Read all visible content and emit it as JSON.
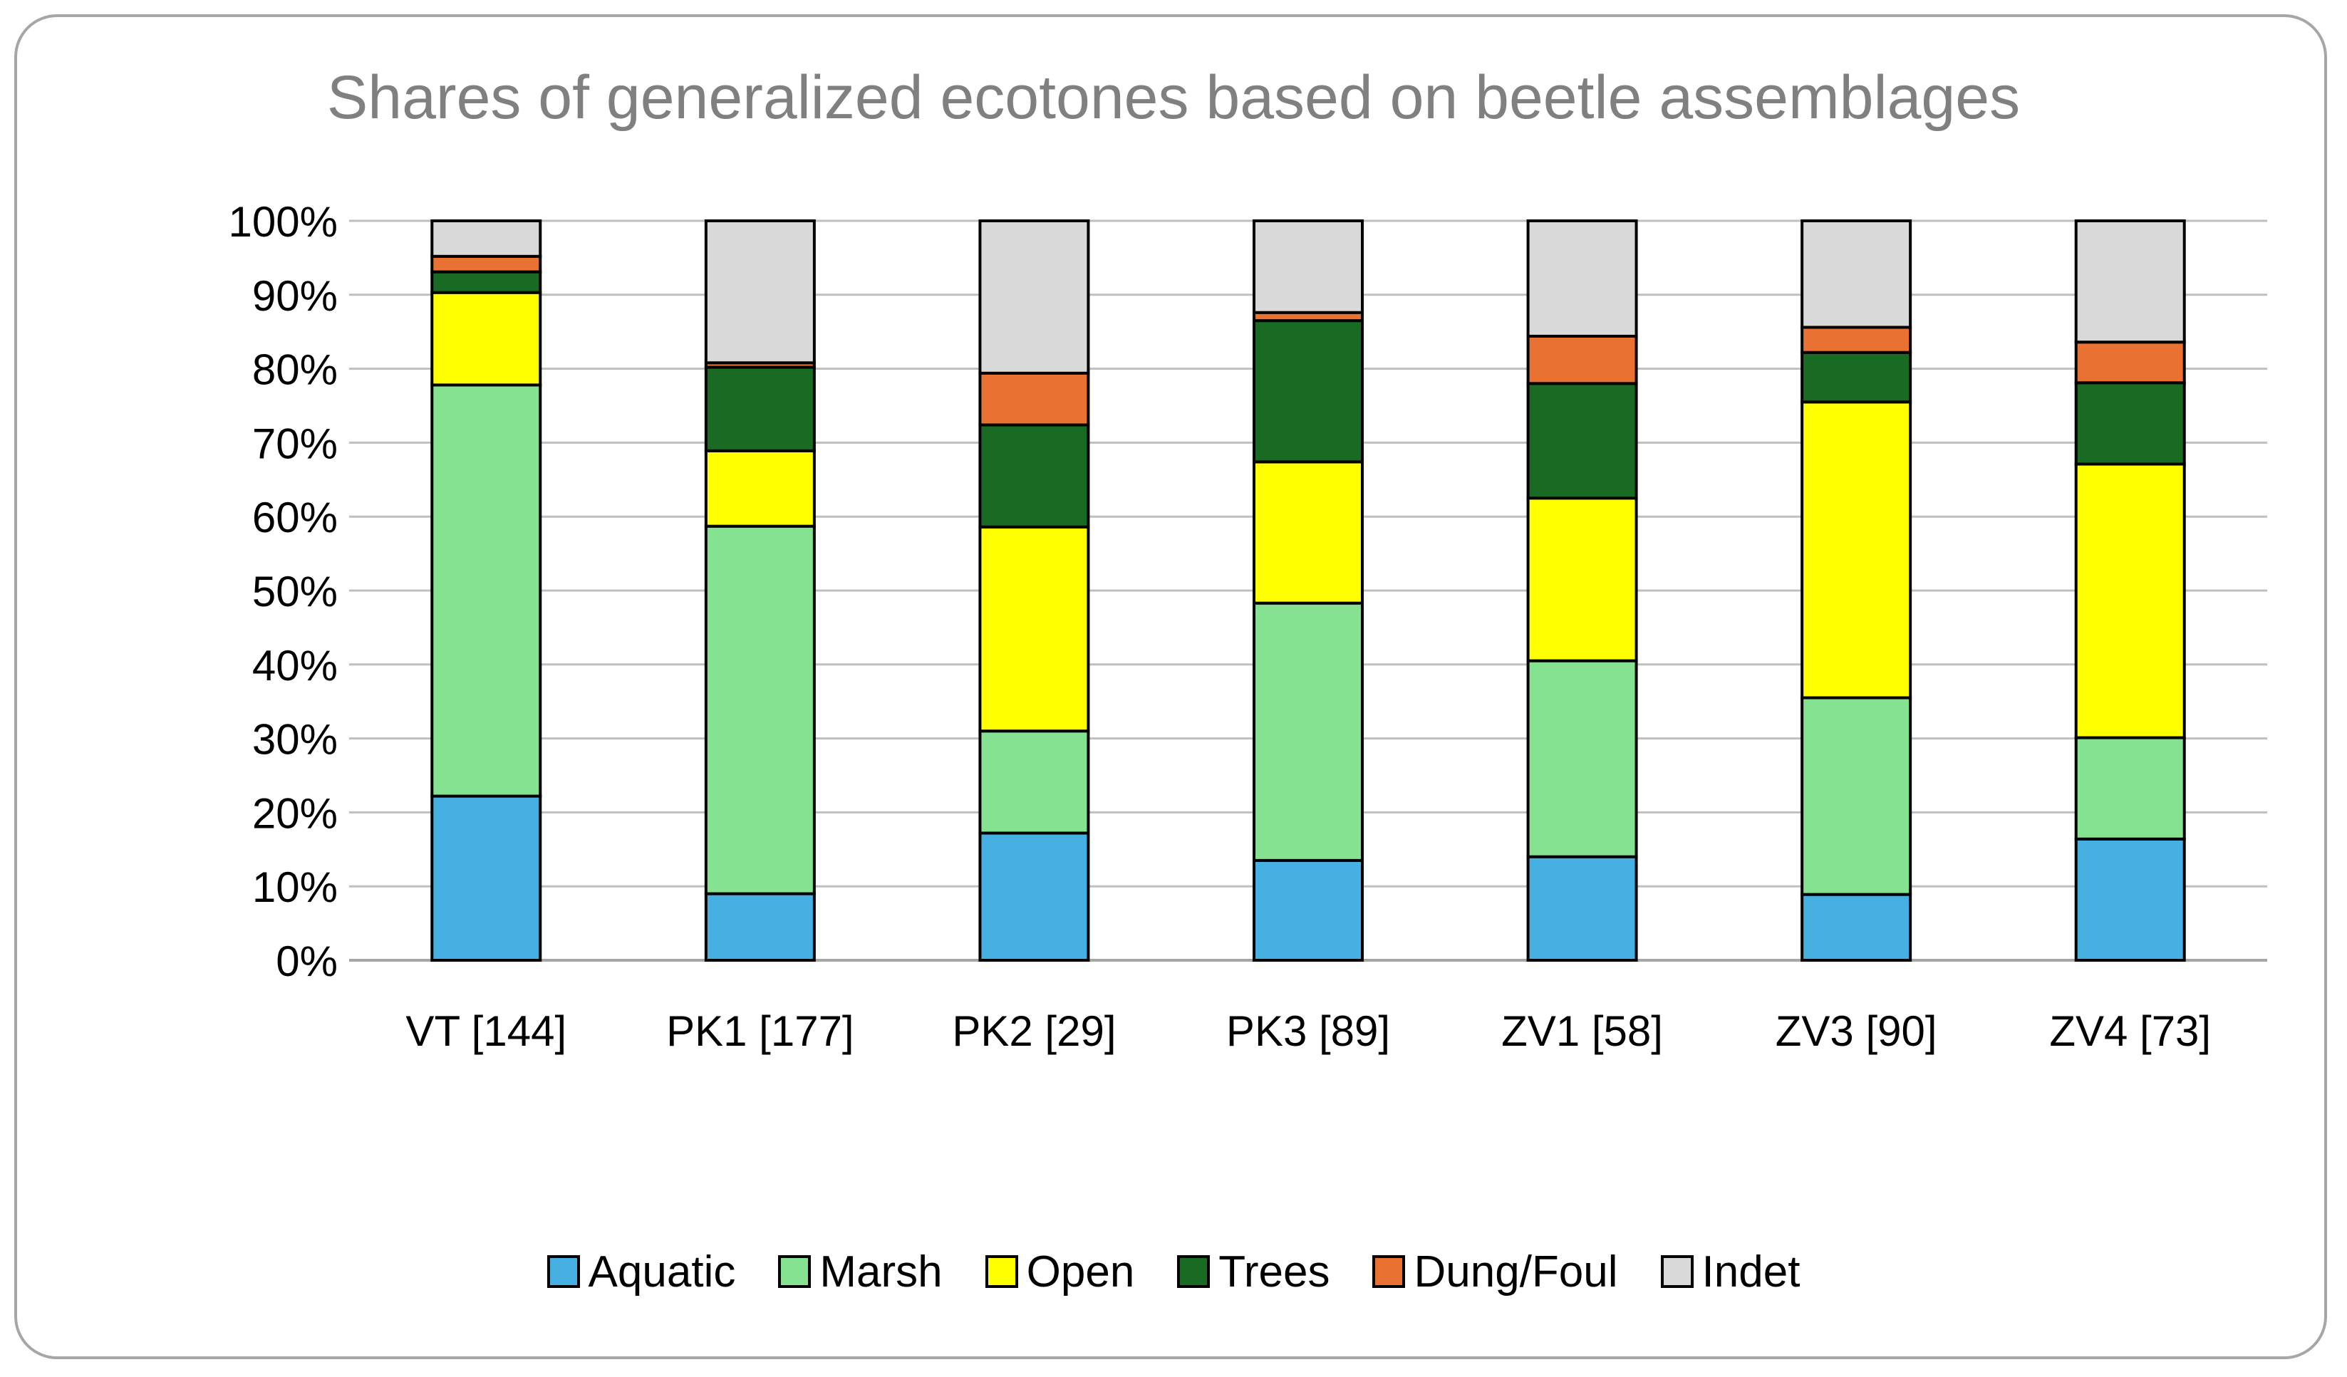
{
  "chart_data": {
    "type": "bar",
    "stacked": true,
    "title": "Shares of generalized ecotones based on beetle assemblages",
    "xlabel": "",
    "ylabel": "",
    "ylim": [
      0,
      100
    ],
    "yticks": [
      "0%",
      "10%",
      "20%",
      "30%",
      "40%",
      "50%",
      "60%",
      "70%",
      "80%",
      "90%",
      "100%"
    ],
    "grid": true,
    "legend_position": "bottom",
    "categories": [
      "VT [144]",
      "PK1 [177]",
      "PK2 [29]",
      "PK3 [89]",
      "ZV1 [58]",
      "ZV3 [90]",
      "ZV4 [73]"
    ],
    "series": [
      {
        "name": "Aquatic",
        "color": "#45b0e1",
        "values": [
          22.2,
          9.0,
          17.2,
          13.5,
          14.0,
          8.9,
          16.4
        ]
      },
      {
        "name": "Marsh",
        "color": "#84e291",
        "values": [
          55.6,
          49.7,
          13.8,
          34.8,
          26.5,
          26.6,
          13.7
        ]
      },
      {
        "name": "Open",
        "color": "#ffff00",
        "values": [
          12.5,
          10.2,
          27.6,
          19.1,
          22.0,
          40.0,
          37.0
        ]
      },
      {
        "name": "Trees",
        "color": "#196b24",
        "values": [
          2.8,
          11.3,
          13.8,
          19.1,
          15.5,
          6.7,
          11.0
        ]
      },
      {
        "name": "Dung/Foul",
        "color": "#e97132",
        "values": [
          2.1,
          0.6,
          7.0,
          1.1,
          6.4,
          3.4,
          5.5
        ]
      },
      {
        "name": "Indet",
        "color": "#d9d9d9",
        "values": [
          4.8,
          19.2,
          20.6,
          12.4,
          15.6,
          14.4,
          16.4
        ]
      }
    ]
  }
}
